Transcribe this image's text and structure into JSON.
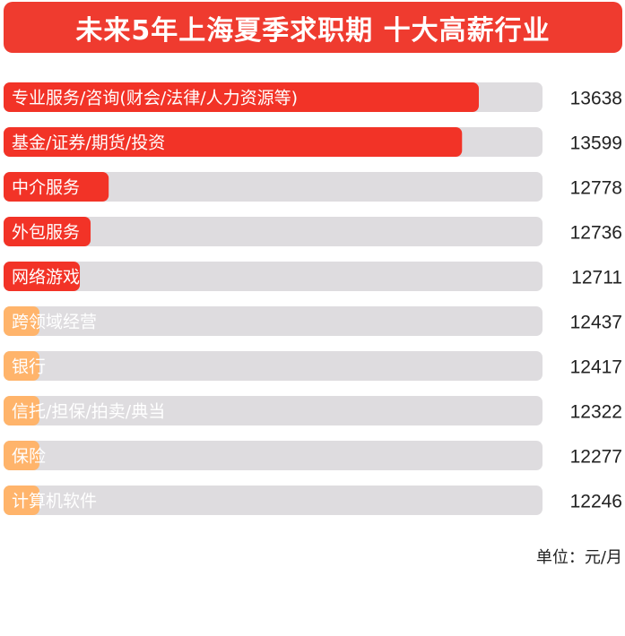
{
  "title": "未来5年上海夏季求职期 十大高薪行业",
  "unit": "单位：元/月",
  "colors": {
    "banner": "#ef3b2f",
    "top_bar": "#f23327",
    "other_bar": "#ffb46b",
    "track": "#dedcdf",
    "value_text": "#222222",
    "label_text": "#ffffff"
  },
  "chart_data": {
    "type": "bar",
    "orientation": "horizontal",
    "categories": [
      "专业服务/咨询(财会/法律/人力资源等)",
      "基金/证券/期货/投资",
      "中介服务",
      "外包服务",
      "网络游戏",
      "跨领域经营",
      "银行",
      "信托/担保/拍卖/典当",
      "保险",
      "计算机软件"
    ],
    "values": [
      13638,
      13599,
      12778,
      12736,
      12711,
      12437,
      12417,
      12322,
      12277,
      12246
    ],
    "highlight_top": 5,
    "data_labels": [
      "13638",
      "13599",
      "12778",
      "12736",
      "12711",
      "12437",
      "12417",
      "12322",
      "12277",
      "12246"
    ]
  }
}
